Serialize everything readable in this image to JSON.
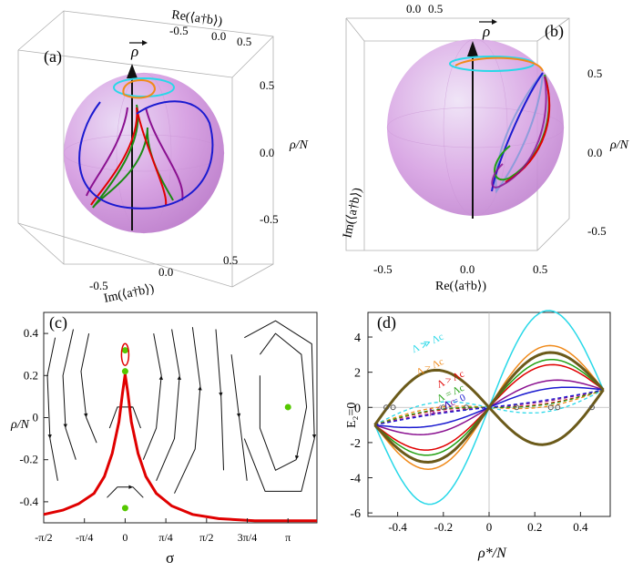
{
  "chart_data": [
    {
      "panel": "(a)",
      "type": "3d-sphere",
      "axis_labels": {
        "vertical": "ρ/N",
        "left_horizontal": "Im(⟨a†b⟩)",
        "back_horizontal": "Re(⟨a†b⟩)",
        "vector": "ρ"
      },
      "vertical_ticks": [
        "0.5",
        "0.0",
        "-0.5"
      ],
      "bottom_ticks": [
        "-0.5",
        "0.0",
        "0.5"
      ],
      "top_ticks": [
        "-0.5",
        "0.0",
        "0.5"
      ],
      "curves": [
        "cyan",
        "orange",
        "red",
        "green",
        "purple",
        "blue"
      ]
    },
    {
      "panel": "(b)",
      "type": "3d-sphere",
      "axis_labels": {
        "vertical": "ρ/N",
        "left_horizontal": "Im(⟨a†b⟩)",
        "bottom_horizontal": "Re(⟨a†b⟩)",
        "vector": "ρ"
      },
      "vertical_ticks": [
        "0.5",
        "0.0",
        "-0.5"
      ],
      "bottom_ticks": [
        "-0.5",
        "0.0",
        "0.5"
      ],
      "top_ticks": [
        "0.0",
        "0.5"
      ],
      "curves": [
        "cyan",
        "orange",
        "green",
        "red",
        "purple",
        "blue"
      ]
    },
    {
      "panel": "(c)",
      "type": "stream-plot",
      "xlabel": "σ",
      "ylabel": "ρ/N",
      "x_ticks": [
        "-π/2",
        "-π/4",
        "0",
        "π/4",
        "π/2",
        "3π/4",
        "π"
      ],
      "x_tick_values": [
        -1.5708,
        -0.7854,
        0,
        0.7854,
        1.5708,
        2.3562,
        3.1416
      ],
      "y_ticks": [
        "0.4",
        "0.2",
        "0",
        "-0.2",
        "-0.4"
      ],
      "y_tick_values": [
        0.4,
        0.2,
        0,
        -0.2,
        -0.4
      ],
      "xlim": [
        -1.5708,
        3.7
      ],
      "ylim": [
        -0.5,
        0.5
      ],
      "separatrix_color": "#e00000",
      "separatrix_points": [
        [
          -1.5708,
          -0.46
        ],
        [
          -1.2,
          -0.44
        ],
        [
          -0.9,
          -0.41
        ],
        [
          -0.6,
          -0.36
        ],
        [
          -0.4,
          -0.28
        ],
        [
          -0.25,
          -0.17
        ],
        [
          -0.12,
          -0.02
        ],
        [
          -0.05,
          0.12
        ],
        [
          0,
          0.205
        ],
        [
          0.05,
          0.12
        ],
        [
          0.12,
          -0.02
        ],
        [
          0.25,
          -0.17
        ],
        [
          0.4,
          -0.28
        ],
        [
          0.6,
          -0.36
        ],
        [
          0.9,
          -0.42
        ],
        [
          1.3,
          -0.46
        ],
        [
          1.8,
          -0.48
        ],
        [
          2.5,
          -0.49
        ],
        [
          3.7,
          -0.49
        ]
      ],
      "fixed_points": [
        [
          0,
          0.32
        ],
        [
          0,
          0.22
        ],
        [
          0,
          -0.43
        ],
        [
          3.1416,
          0.05
        ]
      ],
      "fixed_point_color": "#55c800"
    },
    {
      "panel": "(d)",
      "type": "line",
      "xlabel": "ρ*/N",
      "ylabel": "E₂=0",
      "x_ticks": [
        "-0.4",
        "-0.2",
        "0",
        "0.2",
        "0.4"
      ],
      "x_tick_values": [
        -0.4,
        -0.2,
        0,
        0.2,
        0.4
      ],
      "y_ticks": [
        "4",
        "2",
        "0",
        "-2",
        "-4",
        "-6"
      ],
      "y_tick_values": [
        4,
        2,
        0,
        -2,
        -4,
        -6
      ],
      "xlim": [
        -0.53,
        0.53
      ],
      "ylim": [
        -6.2,
        5.4
      ],
      "series": [
        {
          "name": "Λ ≫ Λc",
          "color": "#28d8e8",
          "amp": 5.0,
          "label_x": -0.33,
          "label_y": 3.1
        },
        {
          "name": "Λ > Λc",
          "color": "#f08a1a",
          "amp": 3.0,
          "label_x": -0.31,
          "label_y": 1.8
        },
        {
          "name": "Λ > Λc",
          "color": "#e00000",
          "amp": 1.9,
          "label_x": -0.22,
          "label_y": 1.1
        },
        {
          "name": "Λ = Λc",
          "color": "#22a012",
          "amp": 2.2,
          "label_x": -0.22,
          "label_y": 0.3
        },
        {
          "name": "Λ < Λc",
          "color": "#8a1090",
          "amp": 1.0,
          "label_x": -0.26,
          "label_y": -0.5
        },
        {
          "name": "Λ = 0",
          "color": "#1a1ad0",
          "amp": 0.55,
          "label_x": -0.19,
          "label_y": -0.1
        }
      ],
      "olive_curve_color": "#6b5a1a"
    }
  ]
}
